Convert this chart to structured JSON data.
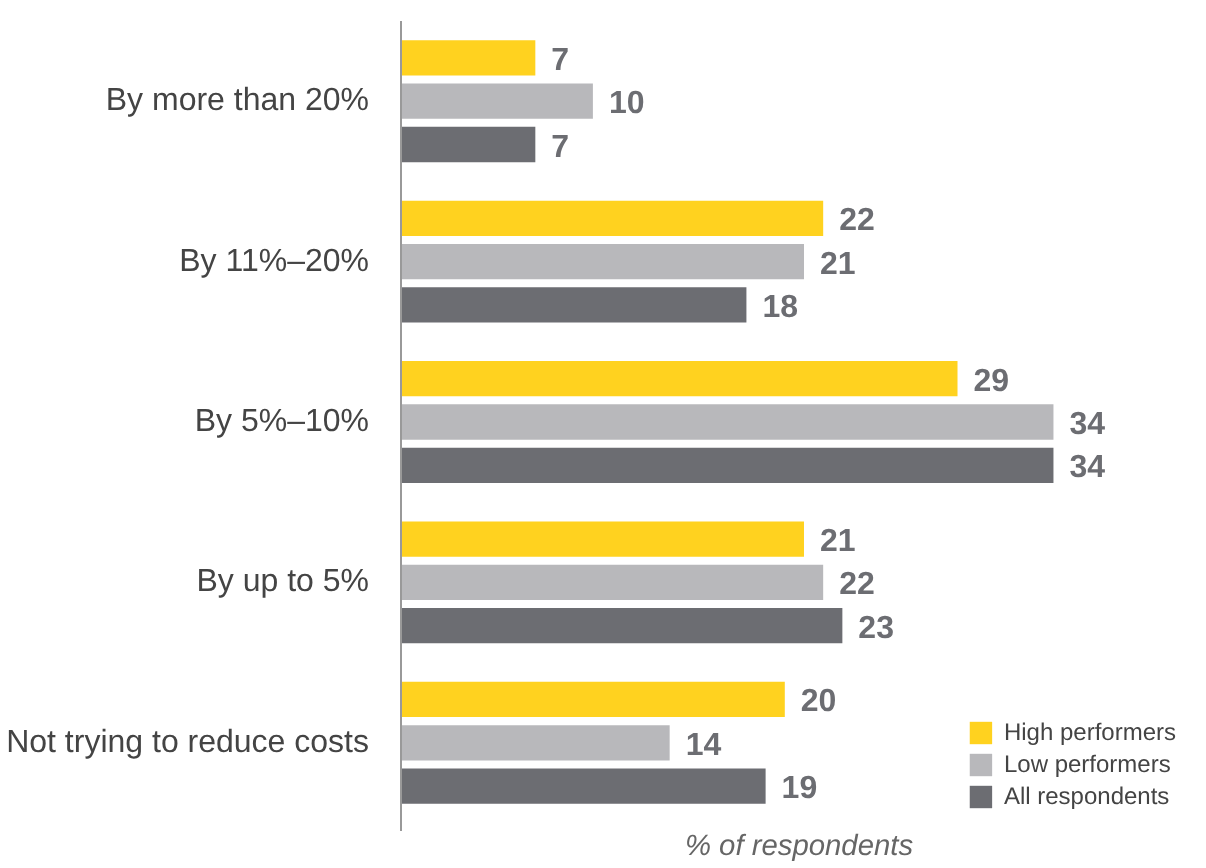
{
  "chart_data": {
    "type": "bar",
    "orientation": "horizontal",
    "xlabel": "% of respondents",
    "categories": [
      "By more than 20%",
      "By 11%–20%",
      "By 5%–10%",
      "By up to 5%",
      "Not trying to reduce costs"
    ],
    "series": [
      {
        "name": "High performers",
        "color": "#ffd21f",
        "values": [
          7,
          22,
          29,
          21,
          20
        ]
      },
      {
        "name": "Low performers",
        "color": "#b8b8bb",
        "values": [
          10,
          21,
          34,
          22,
          14
        ]
      },
      {
        "name": "All respondents",
        "color": "#6c6d72",
        "values": [
          7,
          18,
          34,
          23,
          19
        ]
      }
    ],
    "data_labels": true,
    "legend": "bottom right",
    "grid": false
  }
}
